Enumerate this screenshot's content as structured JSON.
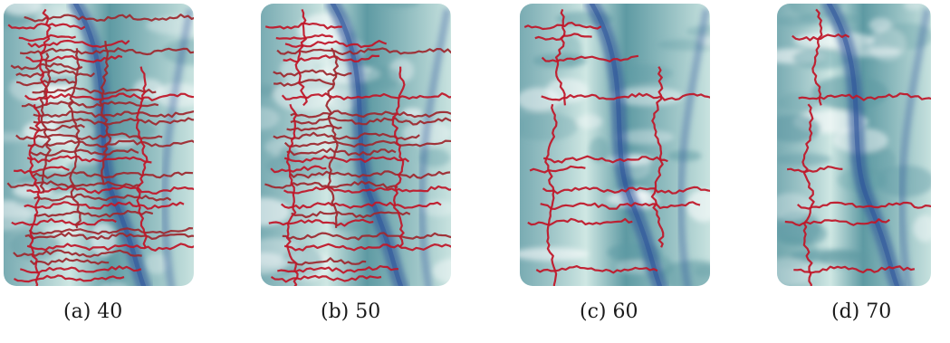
{
  "figure": {
    "panels": [
      {
        "label": "(a)",
        "value": "40",
        "line_density": 1.0
      },
      {
        "label": "(b)",
        "value": "50",
        "line_density": 0.72
      },
      {
        "label": "(c)",
        "value": "60",
        "line_density": 0.42
      },
      {
        "label": "(d)",
        "value": "70",
        "line_density": 0.22
      }
    ],
    "colors": {
      "line": "#c0182a",
      "line_alt": "#9e2a30",
      "background_light": "#cfe7e3",
      "background_mid": "#5e9aa3",
      "vessel": "#2a4f9a"
    }
  }
}
